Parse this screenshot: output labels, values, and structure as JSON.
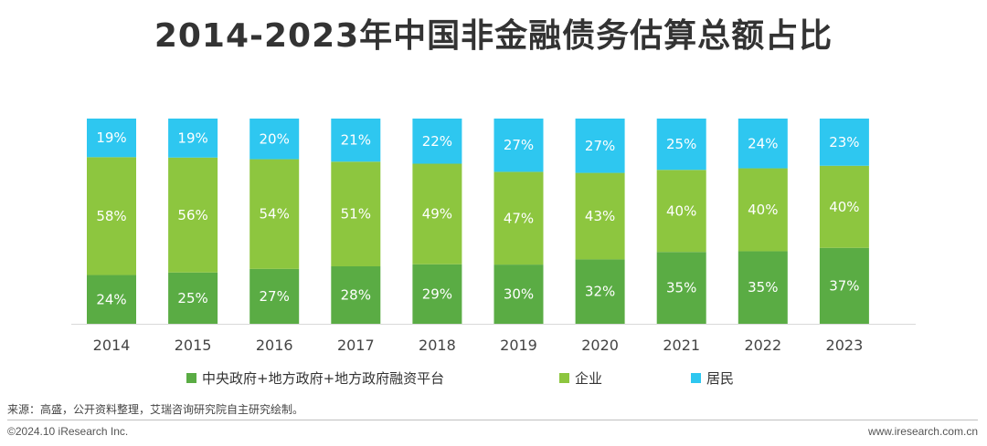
{
  "header": {
    "title": "2014-2023年中国非金融债务估算总额占比"
  },
  "chart_data": {
    "type": "bar",
    "stacked": true,
    "title": "2014-2023年中国非金融债务估算总额占比",
    "categories": [
      "2014",
      "2015",
      "2016",
      "2017",
      "2018",
      "2019",
      "2020",
      "2021",
      "2022",
      "2023"
    ],
    "series": [
      {
        "name": "中央政府+地方政府+地方政府融资平台",
        "color": "#5aac44",
        "values": [
          24,
          25,
          27,
          28,
          29,
          30,
          32,
          35,
          35,
          37
        ]
      },
      {
        "name": "企业",
        "color": "#8dc63f",
        "values": [
          58,
          56,
          54,
          51,
          49,
          47,
          43,
          40,
          40,
          40
        ]
      },
      {
        "name": "居民",
        "color": "#2ec7f0",
        "values": [
          19,
          19,
          20,
          21,
          22,
          27,
          27,
          25,
          24,
          23
        ]
      }
    ],
    "value_suffix": "%",
    "legend_position": "bottom",
    "grid": false
  },
  "legend": {
    "items": [
      {
        "label": "中央政府+地方政府+地方政府融资平台",
        "color": "#5aac44"
      },
      {
        "label": "企业",
        "color": "#8dc63f"
      },
      {
        "label": "居民",
        "color": "#2ec7f0"
      }
    ]
  },
  "footer": {
    "source": "来源：高盛，公开资料整理，艾瑞咨询研究院自主研究绘制。",
    "copyright": "©2024.10 iResearch Inc.",
    "website": "www.iresearch.com.cn"
  }
}
